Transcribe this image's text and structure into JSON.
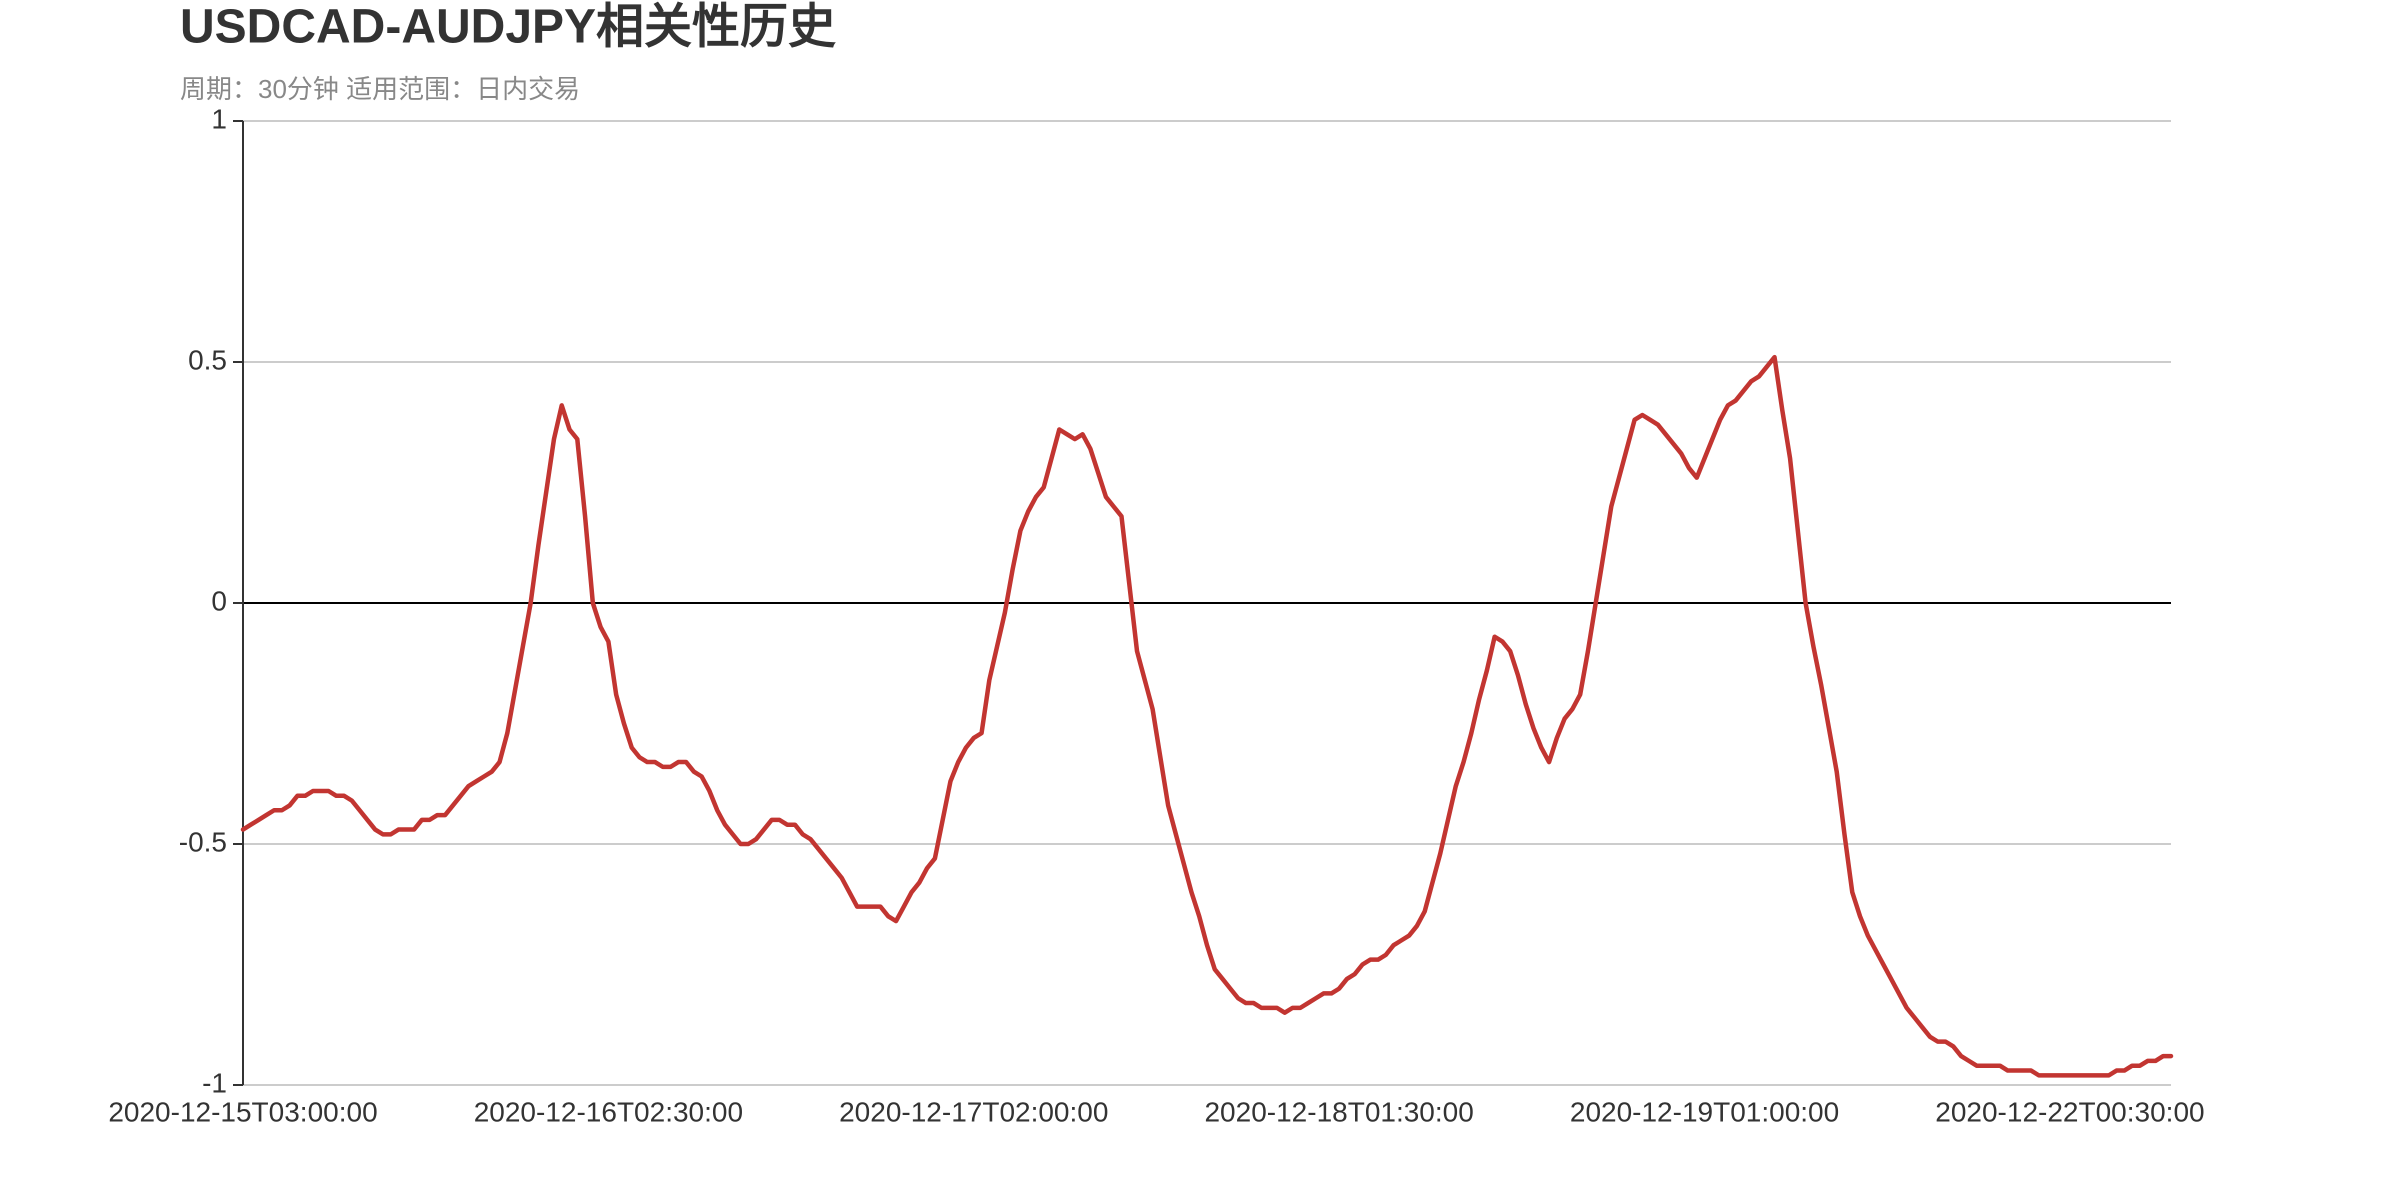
{
  "chart_data": {
    "type": "line",
    "title": "USDCAD-AUDJPY相关性历史",
    "subtitle": "周期：30分钟 适用范围：日内交易",
    "categories": [
      "2020-12-15T03:00:00",
      null,
      null,
      null,
      null,
      null,
      null,
      null,
      null,
      null,
      null,
      null,
      null,
      null,
      null,
      null,
      null,
      null,
      null,
      null,
      null,
      null,
      null,
      null,
      null,
      null,
      null,
      null,
      null,
      null,
      null,
      null,
      null,
      null,
      null,
      null,
      null,
      null,
      null,
      null,
      null,
      null,
      null,
      null,
      null,
      null,
      null,
      "2020-12-16T02:30:00",
      null,
      null,
      null,
      null,
      null,
      null,
      null,
      null,
      null,
      null,
      null,
      null,
      null,
      null,
      null,
      null,
      null,
      null,
      null,
      null,
      null,
      null,
      null,
      null,
      null,
      null,
      null,
      null,
      null,
      null,
      null,
      null,
      null,
      null,
      null,
      null,
      null,
      null,
      null,
      null,
      null,
      null,
      null,
      null,
      null,
      null,
      "2020-12-17T02:00:00",
      null,
      null,
      null,
      null,
      null,
      null,
      null,
      null,
      null,
      null,
      null,
      null,
      null,
      null,
      null,
      null,
      null,
      null,
      null,
      null,
      null,
      null,
      null,
      null,
      null,
      null,
      null,
      null,
      null,
      null,
      null,
      null,
      null,
      null,
      null,
      null,
      null,
      null,
      null,
      null,
      null,
      null,
      null,
      null,
      null,
      null,
      "2020-12-18T01:30:00",
      null,
      null,
      null,
      null,
      null,
      null,
      null,
      null,
      null,
      null,
      null,
      null,
      null,
      null,
      null,
      null,
      null,
      null,
      null,
      null,
      null,
      null,
      null,
      null,
      null,
      null,
      null,
      null,
      null,
      null,
      null,
      null,
      null,
      null,
      null,
      null,
      null,
      null,
      null,
      null,
      null,
      null,
      null,
      null,
      null,
      null,
      "2020-12-19T01:00:00",
      null,
      null,
      null,
      null,
      null,
      null,
      null,
      null,
      null,
      null,
      null,
      null,
      null,
      null,
      null,
      null,
      null,
      null,
      null,
      null,
      null,
      null,
      null,
      null,
      null,
      null,
      null,
      null,
      null,
      null,
      null,
      null,
      null,
      null,
      null,
      null,
      null,
      null,
      null,
      null,
      null,
      null,
      null,
      null,
      null,
      null,
      "2020-12-22T00:30:00",
      null,
      null,
      null,
      null,
      null,
      null,
      null,
      null,
      null,
      null,
      null,
      null,
      null
    ],
    "values": [
      -0.47,
      -0.46,
      -0.45,
      -0.44,
      -0.43,
      -0.43,
      -0.42,
      -0.4,
      -0.4,
      -0.39,
      -0.39,
      -0.39,
      -0.4,
      -0.4,
      -0.41,
      -0.43,
      -0.45,
      -0.47,
      -0.48,
      -0.48,
      -0.47,
      -0.47,
      -0.47,
      -0.45,
      -0.45,
      -0.44,
      -0.44,
      -0.42,
      -0.4,
      -0.38,
      -0.37,
      -0.36,
      -0.35,
      -0.33,
      -0.27,
      -0.18,
      -0.09,
      0.0,
      0.12,
      0.23,
      0.34,
      0.41,
      0.36,
      0.34,
      0.18,
      0.0,
      -0.05,
      -0.08,
      -0.19,
      -0.25,
      -0.3,
      -0.32,
      -0.33,
      -0.33,
      -0.34,
      -0.34,
      -0.33,
      -0.33,
      -0.35,
      -0.36,
      -0.39,
      -0.43,
      -0.46,
      -0.48,
      -0.5,
      -0.5,
      -0.49,
      -0.47,
      -0.45,
      -0.45,
      -0.46,
      -0.46,
      -0.48,
      -0.49,
      -0.51,
      -0.53,
      -0.55,
      -0.57,
      -0.6,
      -0.63,
      -0.63,
      -0.63,
      -0.63,
      -0.65,
      -0.66,
      -0.63,
      -0.6,
      -0.58,
      -0.55,
      -0.53,
      -0.45,
      -0.37,
      -0.33,
      -0.3,
      -0.28,
      -0.27,
      -0.16,
      -0.09,
      -0.02,
      0.07,
      0.15,
      0.19,
      0.22,
      0.24,
      0.3,
      0.36,
      0.35,
      0.34,
      0.35,
      0.32,
      0.27,
      0.22,
      0.2,
      0.18,
      0.04,
      -0.1,
      -0.16,
      -0.22,
      -0.32,
      -0.42,
      -0.48,
      -0.54,
      -0.6,
      -0.65,
      -0.71,
      -0.76,
      -0.78,
      -0.8,
      -0.82,
      -0.83,
      -0.83,
      -0.84,
      -0.84,
      -0.84,
      -0.85,
      -0.84,
      -0.84,
      -0.83,
      -0.82,
      -0.81,
      -0.81,
      -0.8,
      -0.78,
      -0.77,
      -0.75,
      -0.74,
      -0.74,
      -0.73,
      -0.71,
      -0.7,
      -0.69,
      -0.67,
      -0.64,
      -0.58,
      -0.52,
      -0.45,
      -0.38,
      -0.33,
      -0.27,
      -0.2,
      -0.14,
      -0.07,
      -0.08,
      -0.1,
      -0.15,
      -0.21,
      -0.26,
      -0.3,
      -0.33,
      -0.28,
      -0.24,
      -0.22,
      -0.19,
      -0.1,
      0.0,
      0.1,
      0.2,
      0.26,
      0.32,
      0.38,
      0.39,
      0.38,
      0.37,
      0.35,
      0.33,
      0.31,
      0.28,
      0.26,
      0.3,
      0.34,
      0.38,
      0.41,
      0.42,
      0.44,
      0.46,
      0.47,
      0.49,
      0.51,
      0.4,
      0.3,
      0.15,
      0.0,
      -0.09,
      -0.17,
      -0.26,
      -0.35,
      -0.48,
      -0.6,
      -0.65,
      -0.69,
      -0.72,
      -0.75,
      -0.78,
      -0.81,
      -0.84,
      -0.86,
      -0.88,
      -0.9,
      -0.91,
      -0.91,
      -0.92,
      -0.94,
      -0.95,
      -0.96,
      -0.96,
      -0.96,
      -0.96,
      -0.97,
      -0.97,
      -0.97,
      -0.97,
      -0.98,
      -0.98,
      -0.98,
      -0.98,
      -0.98,
      -0.98,
      -0.98,
      -0.98,
      -0.98,
      -0.98,
      -0.97,
      -0.97,
      -0.96,
      -0.96,
      -0.95,
      -0.95,
      -0.94,
      -0.94
    ],
    "color": "#c23531",
    "ylim": [
      -1,
      1
    ],
    "yticks": [
      -1,
      -0.5,
      0,
      0.5,
      1
    ],
    "grid": true
  }
}
